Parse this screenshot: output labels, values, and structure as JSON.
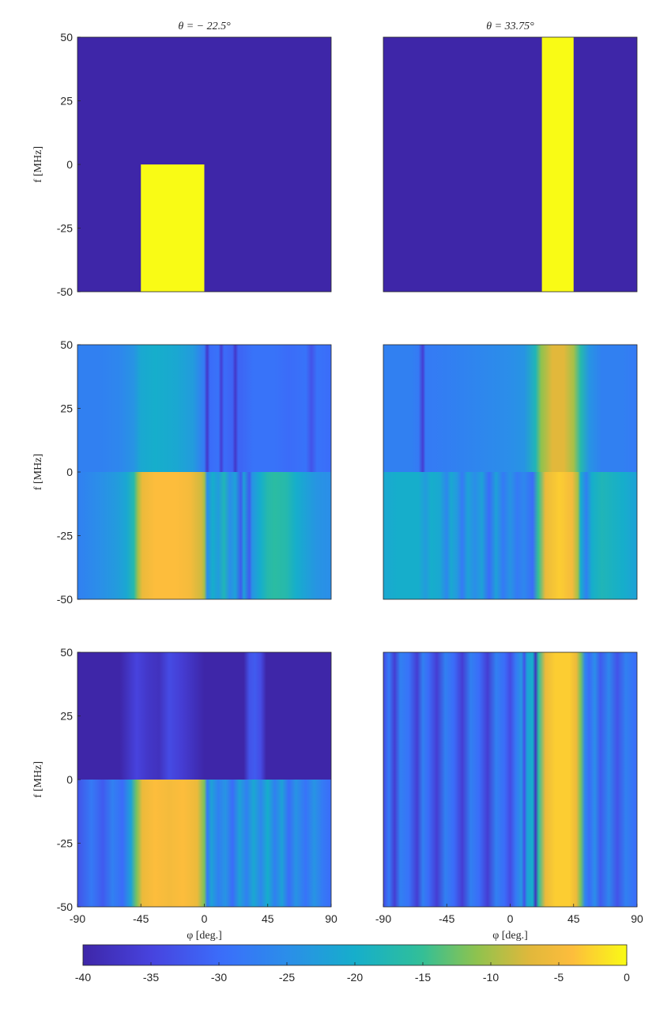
{
  "chart_data": [
    {
      "type": "heatmap",
      "row": 0,
      "col": 0,
      "title": "θ = − 22.5°",
      "ylabel": "f [MHz]",
      "xlim": [
        -90,
        90
      ],
      "ylim": [
        -50,
        50
      ],
      "xticks": [],
      "yticks": [
        50,
        25,
        0,
        -25,
        -50
      ],
      "background": -40,
      "bands": [
        {
          "x": [
            -45,
            0
          ],
          "y": [
            -50,
            0
          ],
          "value": 0
        }
      ]
    },
    {
      "type": "heatmap",
      "row": 0,
      "col": 1,
      "title": "θ = 33.75°",
      "xlim": [
        -90,
        90
      ],
      "ylim": [
        -50,
        50
      ],
      "xticks": [],
      "yticks": [],
      "background": -40,
      "bands": [
        {
          "x": [
            22.5,
            45
          ],
          "y": [
            -50,
            50
          ],
          "value": 0
        }
      ]
    },
    {
      "type": "heatmap",
      "row": 1,
      "col": 0,
      "ylabel": "f [MHz]",
      "xlim": [
        -90,
        90
      ],
      "ylim": [
        -50,
        50
      ],
      "xticks": [],
      "yticks": [
        50,
        25,
        0,
        -25,
        -50
      ],
      "regions": [
        {
          "y": [
            0,
            50
          ],
          "profile": [
            [
              -90,
              -27
            ],
            [
              -75,
              -27
            ],
            [
              -60,
              -26
            ],
            [
              -50,
              -24
            ],
            [
              -45,
              -21
            ],
            [
              -35,
              -20
            ],
            [
              -20,
              -21
            ],
            [
              -8,
              -23
            ],
            [
              0,
              -28
            ],
            [
              2,
              -37
            ],
            [
              4,
              -30
            ],
            [
              10,
              -29
            ],
            [
              12,
              -36
            ],
            [
              14,
              -30
            ],
            [
              20,
              -31
            ],
            [
              22,
              -37
            ],
            [
              24,
              -31
            ],
            [
              35,
              -29
            ],
            [
              50,
              -29
            ],
            [
              60,
              -30
            ],
            [
              72,
              -29
            ],
            [
              76,
              -33
            ],
            [
              80,
              -29
            ],
            [
              90,
              -30
            ]
          ]
        },
        {
          "y": [
            -50,
            0
          ],
          "profile": [
            [
              -90,
              -27
            ],
            [
              -75,
              -25
            ],
            [
              -62,
              -23
            ],
            [
              -55,
              -21
            ],
            [
              -50,
              -17
            ],
            [
              -47,
              -10
            ],
            [
              -44,
              -6
            ],
            [
              -35,
              -4
            ],
            [
              -20,
              -4
            ],
            [
              -10,
              -5
            ],
            [
              -2,
              -8
            ],
            [
              0,
              -10
            ],
            [
              2,
              -25
            ],
            [
              6,
              -20
            ],
            [
              10,
              -23
            ],
            [
              14,
              -18
            ],
            [
              18,
              -25
            ],
            [
              22,
              -22
            ],
            [
              26,
              -32
            ],
            [
              28,
              -22
            ],
            [
              32,
              -32
            ],
            [
              34,
              -24
            ],
            [
              40,
              -20
            ],
            [
              45,
              -17
            ],
            [
              50,
              -16
            ],
            [
              58,
              -17
            ],
            [
              65,
              -20
            ],
            [
              72,
              -22
            ],
            [
              80,
              -24
            ],
            [
              90,
              -25
            ]
          ]
        }
      ]
    },
    {
      "type": "heatmap",
      "row": 1,
      "col": 1,
      "xlim": [
        -90,
        90
      ],
      "ylim": [
        -50,
        50
      ],
      "xticks": [],
      "yticks": [],
      "regions": [
        {
          "y": [
            0,
            50
          ],
          "profile": [
            [
              -90,
              -27
            ],
            [
              -70,
              -27
            ],
            [
              -65,
              -28
            ],
            [
              -62,
              -36
            ],
            [
              -60,
              -28
            ],
            [
              -40,
              -27
            ],
            [
              -20,
              -26
            ],
            [
              0,
              -25
            ],
            [
              10,
              -24
            ],
            [
              18,
              -18
            ],
            [
              22,
              -11
            ],
            [
              30,
              -7
            ],
            [
              38,
              -7
            ],
            [
              45,
              -10
            ],
            [
              50,
              -17
            ],
            [
              56,
              -24
            ],
            [
              65,
              -27
            ],
            [
              80,
              -27
            ],
            [
              90,
              -28
            ]
          ]
        },
        {
          "y": [
            -50,
            0
          ],
          "profile": [
            [
              -90,
              -21
            ],
            [
              -80,
              -20
            ],
            [
              -65,
              -20
            ],
            [
              -60,
              -23
            ],
            [
              -56,
              -20
            ],
            [
              -50,
              -21
            ],
            [
              -45,
              -26
            ],
            [
              -42,
              -21
            ],
            [
              -38,
              -23
            ],
            [
              -34,
              -28
            ],
            [
              -30,
              -22
            ],
            [
              -25,
              -25
            ],
            [
              -20,
              -22
            ],
            [
              -15,
              -30
            ],
            [
              -10,
              -22
            ],
            [
              -5,
              -28
            ],
            [
              0,
              -24
            ],
            [
              5,
              -28
            ],
            [
              10,
              -26
            ],
            [
              16,
              -30
            ],
            [
              20,
              -15
            ],
            [
              25,
              -6
            ],
            [
              35,
              -3
            ],
            [
              44,
              -5
            ],
            [
              48,
              -10
            ],
            [
              50,
              -20
            ],
            [
              54,
              -27
            ],
            [
              58,
              -20
            ],
            [
              65,
              -18
            ],
            [
              80,
              -20
            ],
            [
              90,
              -22
            ]
          ]
        }
      ]
    },
    {
      "type": "heatmap",
      "row": 2,
      "col": 0,
      "ylabel": "f [MHz]",
      "xlabel": "φ [deg.]",
      "xlim": [
        -90,
        90
      ],
      "ylim": [
        -50,
        50
      ],
      "xticks": [
        -90,
        -45,
        0,
        45,
        90
      ],
      "yticks": [
        50,
        25,
        0,
        -25,
        -50
      ],
      "regions": [
        {
          "y": [
            0,
            50
          ],
          "profile": [
            [
              -90,
              -40
            ],
            [
              -60,
              -40
            ],
            [
              -55,
              -38
            ],
            [
              -48,
              -35
            ],
            [
              -40,
              -37
            ],
            [
              -32,
              -38
            ],
            [
              -25,
              -34
            ],
            [
              -16,
              -36
            ],
            [
              -8,
              -38
            ],
            [
              0,
              -40
            ],
            [
              28,
              -40
            ],
            [
              32,
              -33
            ],
            [
              36,
              -32
            ],
            [
              40,
              -34
            ],
            [
              44,
              -40
            ],
            [
              90,
              -40
            ]
          ]
        },
        {
          "y": [
            -50,
            0
          ],
          "profile": [
            [
              -90,
              -33
            ],
            [
              -80,
              -28
            ],
            [
              -72,
              -32
            ],
            [
              -65,
              -27
            ],
            [
              -58,
              -30
            ],
            [
              -52,
              -22
            ],
            [
              -48,
              -12
            ],
            [
              -44,
              -6
            ],
            [
              -35,
              -4
            ],
            [
              -25,
              -5
            ],
            [
              -15,
              -4
            ],
            [
              -5,
              -6
            ],
            [
              0,
              -12
            ],
            [
              2,
              -28
            ],
            [
              5,
              -22
            ],
            [
              10,
              -27
            ],
            [
              15,
              -24
            ],
            [
              20,
              -30
            ],
            [
              25,
              -22
            ],
            [
              30,
              -27
            ],
            [
              35,
              -21
            ],
            [
              40,
              -26
            ],
            [
              45,
              -20
            ],
            [
              50,
              -27
            ],
            [
              55,
              -22
            ],
            [
              60,
              -30
            ],
            [
              65,
              -24
            ],
            [
              72,
              -29
            ],
            [
              78,
              -24
            ],
            [
              84,
              -28
            ],
            [
              90,
              -30
            ]
          ]
        }
      ]
    },
    {
      "type": "heatmap",
      "row": 2,
      "col": 1,
      "xlabel": "φ [deg.]",
      "xlim": [
        -90,
        90
      ],
      "ylim": [
        -50,
        50
      ],
      "xticks": [
        -90,
        -45,
        0,
        45,
        90
      ],
      "yticks": [],
      "regions": [
        {
          "y": [
            -50,
            50
          ],
          "profile": [
            [
              -90,
              -34
            ],
            [
              -86,
              -28
            ],
            [
              -82,
              -36
            ],
            [
              -78,
              -27
            ],
            [
              -72,
              -29
            ],
            [
              -66,
              -36
            ],
            [
              -62,
              -27
            ],
            [
              -58,
              -30
            ],
            [
              -52,
              -36
            ],
            [
              -46,
              -27
            ],
            [
              -40,
              -30
            ],
            [
              -34,
              -36
            ],
            [
              -28,
              -27
            ],
            [
              -22,
              -30
            ],
            [
              -16,
              -36
            ],
            [
              -10,
              -27
            ],
            [
              -4,
              -30
            ],
            [
              0,
              -34
            ],
            [
              4,
              -28
            ],
            [
              8,
              -24
            ],
            [
              10,
              -33
            ],
            [
              12,
              -22
            ],
            [
              16,
              -20
            ],
            [
              18,
              -38
            ],
            [
              20,
              -16
            ],
            [
              25,
              -6
            ],
            [
              32,
              -3
            ],
            [
              42,
              -3
            ],
            [
              47,
              -6
            ],
            [
              50,
              -12
            ],
            [
              53,
              -26
            ],
            [
              56,
              -30
            ],
            [
              60,
              -25
            ],
            [
              64,
              -32
            ],
            [
              70,
              -26
            ],
            [
              76,
              -33
            ],
            [
              82,
              -27
            ],
            [
              90,
              -30
            ]
          ]
        }
      ]
    },
    {
      "type": "colorbar",
      "ticks": [
        -40,
        -35,
        -30,
        -25,
        -20,
        -15,
        -10,
        -5,
        0
      ],
      "tick_labels": [
        "-40",
        "-35",
        "-30",
        "-25",
        "-20",
        "-15",
        "-10",
        "-5",
        "0"
      ],
      "range": [
        -40,
        0
      ],
      "colormap": "parula"
    }
  ]
}
